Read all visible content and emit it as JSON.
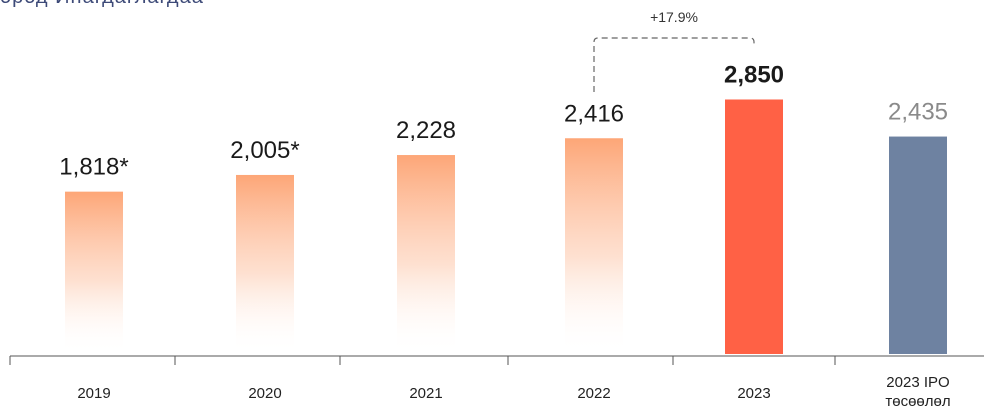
{
  "header": {
    "title_fragment": "ород Инагдаглагдаа"
  },
  "chart_data": {
    "type": "bar",
    "title": "",
    "xlabel": "",
    "ylabel": "",
    "categories": [
      "2019",
      "2020",
      "2021",
      "2022",
      "2023",
      "2023 IPO төсөөлөл"
    ],
    "values": [
      1818,
      2005,
      2228,
      2416,
      2850,
      2435
    ],
    "value_labels": [
      "1,818*",
      "2,005*",
      "2,228",
      "2,416",
      "2,850",
      "2,435"
    ],
    "ylim": [
      0,
      3000
    ],
    "grid": false,
    "legend": "none",
    "annotation": {
      "text": "+17.9%",
      "from": "2022",
      "to": "2023"
    },
    "colors": {
      "gradient_top": "#fda677",
      "highlight": "#ff6145",
      "projection": "#6e82a1",
      "label": "#1a1a1a",
      "projection_label": "#8a8a8a",
      "axis": "#555555"
    },
    "bar_styles": [
      "gradient",
      "gradient",
      "gradient",
      "gradient",
      "highlight",
      "projection"
    ]
  }
}
